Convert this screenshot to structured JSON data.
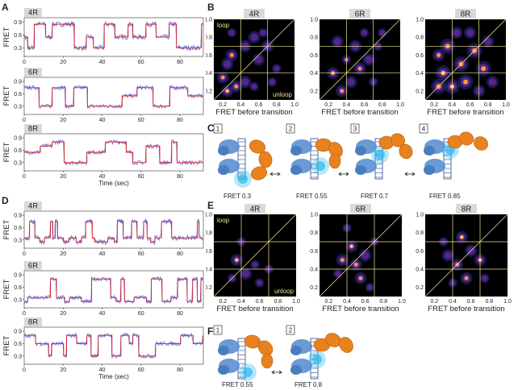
{
  "panels": {
    "A": "A",
    "B": "B",
    "C": "C",
    "D": "D",
    "E": "E",
    "F": "F"
  },
  "traces": {
    "y_label": "FRET",
    "x_label": "Time (sec)",
    "x_ticks": [
      "0",
      "20",
      "40",
      "60",
      "80"
    ],
    "y_ticks_A": [
      "0.3",
      "0.6",
      "0.9"
    ],
    "y_ticks_8R": [
      "0.3",
      "0.6",
      "0.9"
    ],
    "D_y_ticks": [
      "0.3",
      "0.6",
      "0.9"
    ],
    "series_labels": [
      "4R",
      "6R",
      "8R"
    ]
  },
  "heatmaps": {
    "y_label": "FRET after transition",
    "x_label": "FRET  before transition",
    "ticks": [
      "0.2",
      "0.4",
      "0.6",
      "0.8",
      "1.0"
    ],
    "loop": "loop",
    "unloop": "unloop",
    "titles": [
      "4R",
      "6R",
      "8R"
    ]
  },
  "schematic_C": {
    "steps": [
      "1",
      "2",
      "3",
      "4"
    ],
    "fret": [
      "FRET 0.3",
      "FRET 0.55",
      "FRET 0.7",
      "FRET 0.85"
    ]
  },
  "schematic_F": {
    "steps": [
      "1",
      "2"
    ],
    "fret": [
      "FRET 0.55",
      "FRET 0.8"
    ]
  },
  "colors": {
    "trace_raw": "#6b6fd6",
    "trace_fit": "#d8202a",
    "heat_bg": "#000000",
    "protein": "#e8821e",
    "dna": "#5b8fd0",
    "glow": "#2fb8ee"
  }
}
